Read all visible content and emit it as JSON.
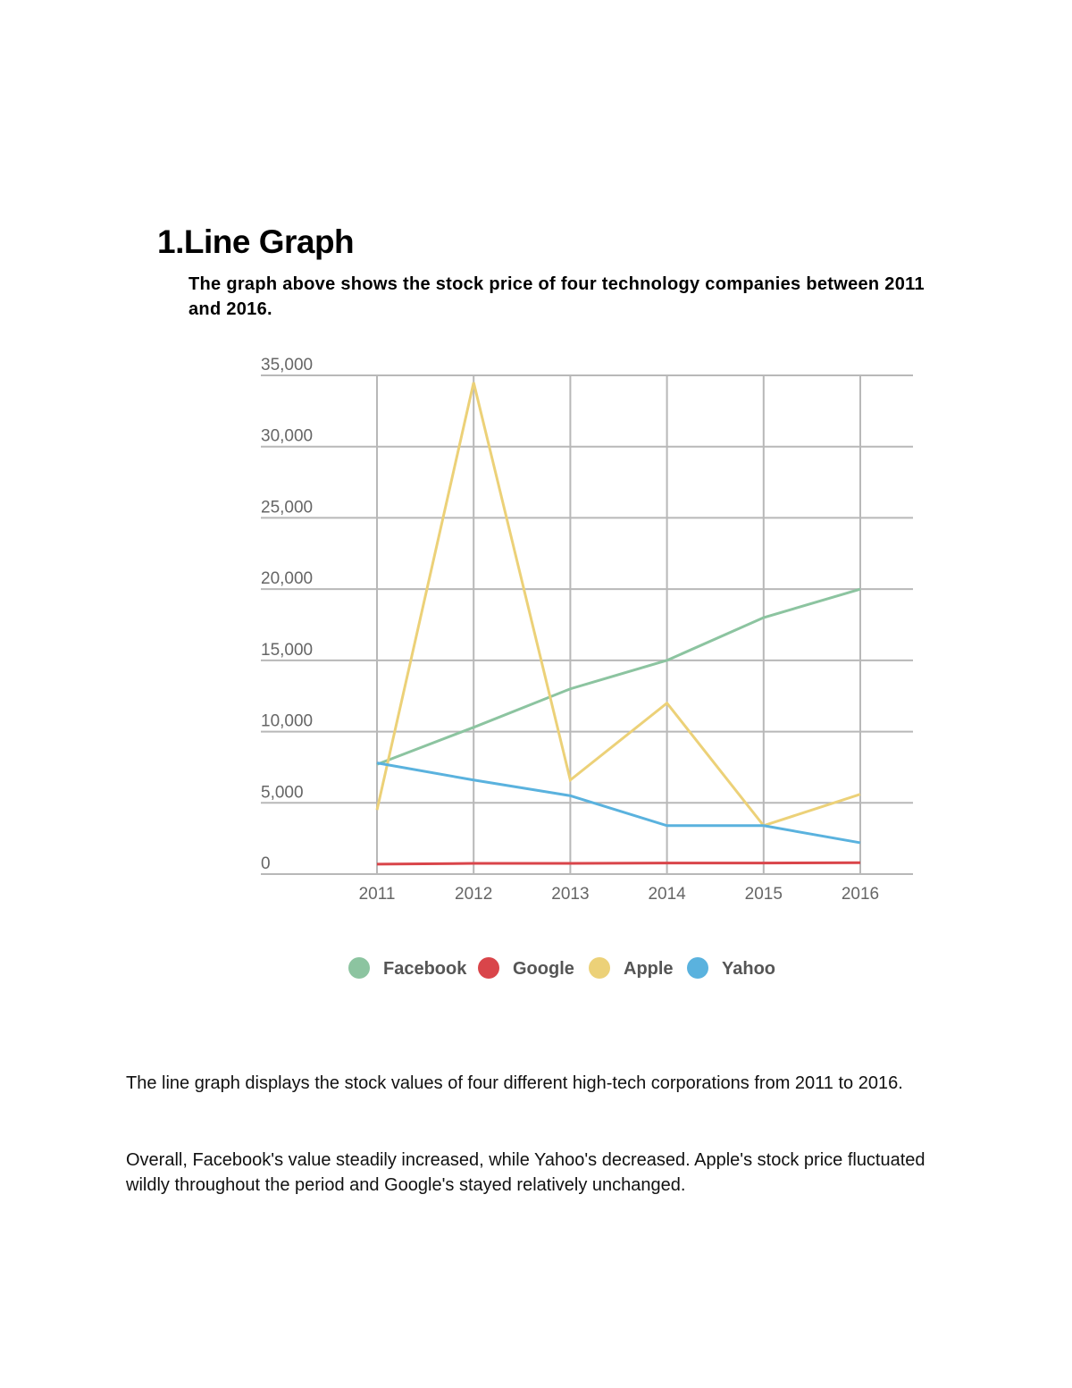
{
  "document": {
    "heading": "1.Line Graph",
    "subtitle": "The graph above shows the stock price of four technology companies between 2011 and 2016.",
    "paragraphs": [
      "The line graph displays the stock values of four different high-tech corporations from 2011 to 2016.",
      "Overall, Facebook's value steadily increased, while Yahoo's decreased. Apple's stock price fluctuated wildly throughout the period and Google's stayed relatively unchanged."
    ]
  },
  "chart_data": {
    "type": "line",
    "title": "",
    "xlabel": "",
    "ylabel": "",
    "categories": [
      "2011",
      "2012",
      "2013",
      "2014",
      "2015",
      "2016"
    ],
    "ylim": [
      0,
      35000
    ],
    "yticks": [
      0,
      5000,
      10000,
      15000,
      20000,
      25000,
      30000,
      35000
    ],
    "ytick_labels": [
      "0",
      "5,000",
      "10,000",
      "15,000",
      "20,000",
      "25,000",
      "30,000",
      "35,000"
    ],
    "grid": true,
    "legend_position": "bottom",
    "series": [
      {
        "name": "Facebook",
        "color": "#8cc4a0",
        "values": [
          7700,
          10300,
          13000,
          15000,
          18000,
          20000
        ]
      },
      {
        "name": "Google",
        "color": "#d9454a",
        "values": [
          700,
          750,
          750,
          780,
          780,
          800
        ]
      },
      {
        "name": "Apple",
        "color": "#ecd178",
        "values": [
          4500,
          34500,
          6600,
          12000,
          3400,
          5600
        ]
      },
      {
        "name": "Yahoo",
        "color": "#5ab2de",
        "values": [
          7800,
          6600,
          5500,
          3400,
          3400,
          2200
        ]
      }
    ]
  }
}
